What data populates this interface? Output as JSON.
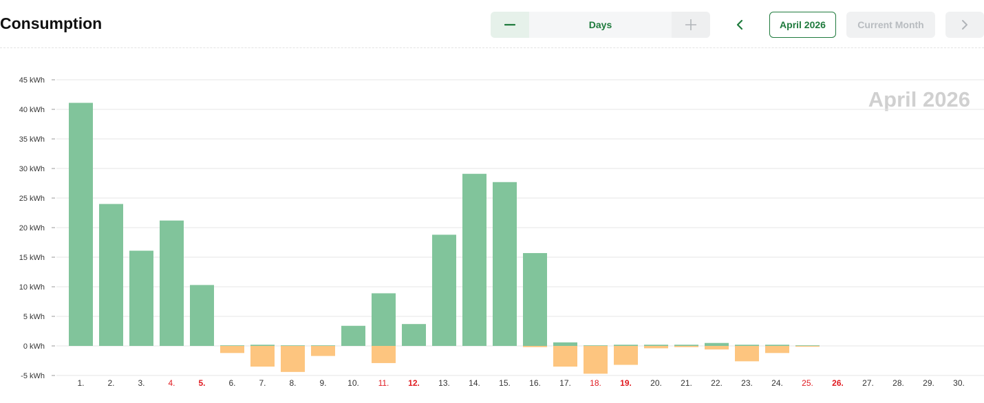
{
  "header": {
    "title": "Consumption",
    "period_label": "Days",
    "month_button": "April 2026",
    "current_month_button": "Current Month"
  },
  "colors": {
    "accent": "#1e7a3c",
    "consumption": "#81c49b",
    "feed_in": "#fdc57f",
    "weekend_label": "#e0191f"
  },
  "icons": {
    "zoom_out": "minus-icon",
    "zoom_in": "plus-icon",
    "previous": "chevron-left-icon",
    "next": "chevron-right-icon"
  },
  "chart_data": {
    "type": "bar",
    "watermark": "April 2026",
    "unit": "kWh",
    "ylim": [
      -5,
      45
    ],
    "yticks": [
      45,
      40,
      35,
      30,
      25,
      20,
      15,
      10,
      5,
      0,
      -5
    ],
    "ytick_labels": [
      "45 kWh",
      "40 kWh",
      "35 kWh",
      "30 kWh",
      "25 kWh",
      "20 kWh",
      "15 kWh",
      "10 kWh",
      "5 kWh",
      "0 kWh",
      "-5 kWh"
    ],
    "grid": true,
    "categories": [
      "1.",
      "2.",
      "3.",
      "4.",
      "5.",
      "6.",
      "7.",
      "8.",
      "9.",
      "10.",
      "11.",
      "12.",
      "13.",
      "14.",
      "15.",
      "16.",
      "17.",
      "18.",
      "19.",
      "20.",
      "21.",
      "22.",
      "23.",
      "24.",
      "25.",
      "26.",
      "27.",
      "28.",
      "29.",
      "30."
    ],
    "label_style": [
      "normal",
      "normal",
      "normal",
      "red",
      "red-bold",
      "normal",
      "normal",
      "normal",
      "normal",
      "normal",
      "red",
      "red-bold",
      "normal",
      "normal",
      "normal",
      "normal",
      "normal",
      "red",
      "red-bold",
      "normal",
      "normal",
      "normal",
      "normal",
      "normal",
      "red",
      "red-bold",
      "normal",
      "normal",
      "normal",
      "normal"
    ],
    "series": [
      {
        "color": "#81c49b",
        "values": [
          41.1,
          24.0,
          16.1,
          21.2,
          10.3,
          0.1,
          0.2,
          0.1,
          0.1,
          3.4,
          8.9,
          3.7,
          18.8,
          29.1,
          27.7,
          15.7,
          0.6,
          0.1,
          0.2,
          0.2,
          0.2,
          0.5,
          0.2,
          0.2,
          0.1,
          0,
          0,
          0,
          0,
          0
        ]
      },
      {
        "color": "#fdc57f",
        "values": [
          0,
          0,
          0,
          0,
          0,
          -1.2,
          -3.5,
          -4.4,
          -1.7,
          0,
          -2.9,
          0,
          0,
          0,
          0,
          -0.2,
          -3.5,
          -4.7,
          -3.2,
          -0.4,
          -0.2,
          -0.6,
          -2.6,
          -1.2,
          -0.1,
          0,
          0,
          0,
          0,
          0
        ]
      }
    ]
  }
}
